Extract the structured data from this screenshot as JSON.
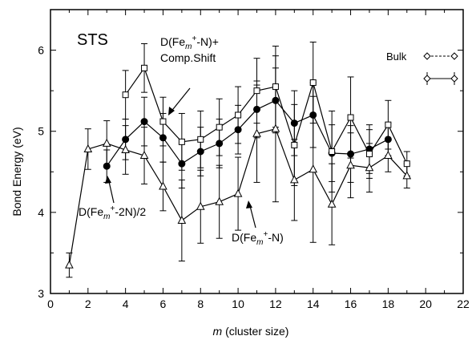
{
  "chart_data": {
    "type": "line",
    "title": "STS",
    "xlabel_italic": "m",
    "xlabel_rest": " (cluster size)",
    "ylabel": "Bond Energy (eV)",
    "xlim": [
      0,
      22
    ],
    "ylim": [
      3,
      6.5
    ],
    "xticks": [
      0,
      2,
      4,
      6,
      8,
      10,
      12,
      14,
      16,
      18,
      20,
      22
    ],
    "yticks": [
      3,
      4,
      5,
      6
    ],
    "grid": false,
    "series": [
      {
        "marker": "open-triangle",
        "points": [
          {
            "x": 1,
            "y": 3.35,
            "err": 0.15
          },
          {
            "x": 2,
            "y": 4.78,
            "err": 0.25
          },
          {
            "x": 3,
            "y": 4.85,
            "err": 0.28
          },
          {
            "x": 4,
            "y": 4.77,
            "err": 0.3
          },
          {
            "x": 5,
            "y": 4.7,
            "err": 0.35
          },
          {
            "x": 6,
            "y": 4.32,
            "err": 0.3
          },
          {
            "x": 7,
            "y": 3.9,
            "err": 0.5
          },
          {
            "x": 8,
            "y": 4.07,
            "err": 0.45
          },
          {
            "x": 9,
            "y": 4.13,
            "err": 0.45
          },
          {
            "x": 10,
            "y": 4.23,
            "err": 0.45
          },
          {
            "x": 11,
            "y": 4.97,
            "err": 0.6
          },
          {
            "x": 12,
            "y": 5.03,
            "err": 0.9
          },
          {
            "x": 13,
            "y": 4.4,
            "err": 0.5
          },
          {
            "x": 14,
            "y": 4.53,
            "err": 0.9
          },
          {
            "x": 15,
            "y": 4.1,
            "err": 0.5
          },
          {
            "x": 16,
            "y": 4.58,
            "err": 0.4
          },
          {
            "x": 17,
            "y": 4.55,
            "err": 0.3
          },
          {
            "x": 18,
            "y": 4.7,
            "err": 0.2
          },
          {
            "x": 19,
            "y": 4.45,
            "err": 0.15
          }
        ]
      },
      {
        "marker": "filled-circle",
        "points": [
          {
            "x": 3,
            "y": 4.57,
            "err": 0.2
          },
          {
            "x": 4,
            "y": 4.9,
            "err": 0.25
          },
          {
            "x": 5,
            "y": 5.12,
            "err": 0.3
          },
          {
            "x": 6,
            "y": 4.92,
            "err": 0.3
          },
          {
            "x": 7,
            "y": 4.6,
            "err": 0.3
          },
          {
            "x": 8,
            "y": 4.75,
            "err": 0.3
          },
          {
            "x": 9,
            "y": 4.85,
            "err": 0.3
          },
          {
            "x": 10,
            "y": 5.02,
            "err": 0.3
          },
          {
            "x": 11,
            "y": 5.27,
            "err": 0.35
          },
          {
            "x": 12,
            "y": 5.38,
            "err": 0.4
          },
          {
            "x": 13,
            "y": 5.1,
            "err": 0.4
          },
          {
            "x": 14,
            "y": 5.2,
            "err": 0.4
          },
          {
            "x": 15,
            "y": 4.73,
            "err": 0.35
          },
          {
            "x": 16,
            "y": 4.72,
            "err": 0.35
          },
          {
            "x": 17,
            "y": 4.78,
            "err": 0.3
          },
          {
            "x": 18,
            "y": 4.9,
            "err": 0.2
          }
        ]
      },
      {
        "marker": "open-square",
        "points": [
          {
            "x": 4,
            "y": 5.45,
            "err": 0.3
          },
          {
            "x": 5,
            "y": 5.78,
            "err": 0.3
          },
          {
            "x": 6,
            "y": 5.12,
            "err": 0.3
          },
          {
            "x": 7,
            "y": 4.87,
            "err": 0.35
          },
          {
            "x": 8,
            "y": 4.9,
            "err": 0.35
          },
          {
            "x": 9,
            "y": 5.05,
            "err": 0.35
          },
          {
            "x": 10,
            "y": 5.2,
            "err": 0.35
          },
          {
            "x": 11,
            "y": 5.5,
            "err": 0.4
          },
          {
            "x": 12,
            "y": 5.55,
            "err": 0.5
          },
          {
            "x": 13,
            "y": 4.83,
            "err": 0.5
          },
          {
            "x": 14,
            "y": 5.6,
            "err": 0.5
          },
          {
            "x": 15,
            "y": 4.75,
            "err": 0.5
          },
          {
            "x": 16,
            "y": 5.17,
            "err": 0.5
          },
          {
            "x": 17,
            "y": 4.72,
            "err": 0.3
          },
          {
            "x": 18,
            "y": 5.08,
            "err": 0.3
          },
          {
            "x": 19,
            "y": 4.6,
            "err": 0.15
          }
        ]
      }
    ],
    "legend": {
      "placement": "top-right",
      "entries": [
        {
          "label": "Bulk",
          "style": "dashed-diamond-line"
        },
        {
          "label": "",
          "style": "errorbar-diamond-line"
        }
      ]
    },
    "annotations": [
      {
        "id": "square",
        "line1": "D(Fe",
        "sub": "m",
        "sup": "+",
        "line1_rest": "-N)+",
        "line2": "Comp.Shift"
      },
      {
        "id": "circle",
        "text_pre": "D(Fe",
        "sub": "m",
        "sup": "+",
        "text_post": "-2N)/2"
      },
      {
        "id": "triangle",
        "text_pre": "D(Fe",
        "sub": "m",
        "sup": "+",
        "text_post": "-N)"
      }
    ]
  }
}
